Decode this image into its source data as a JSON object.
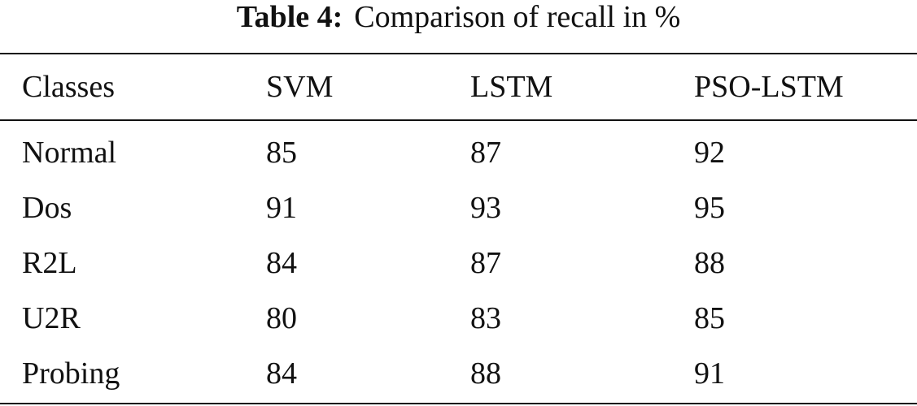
{
  "table": {
    "label": "Table 4:",
    "caption": "Comparison of recall in %",
    "header": [
      "Classes",
      "SVM",
      "LSTM",
      "PSO-LSTM"
    ],
    "rows": [
      [
        "Normal",
        85,
        87,
        92
      ],
      [
        "Dos",
        91,
        93,
        95
      ],
      [
        "R2L",
        84,
        87,
        88
      ],
      [
        "U2R",
        80,
        83,
        85
      ],
      [
        "Probing",
        84,
        88,
        91
      ]
    ]
  }
}
